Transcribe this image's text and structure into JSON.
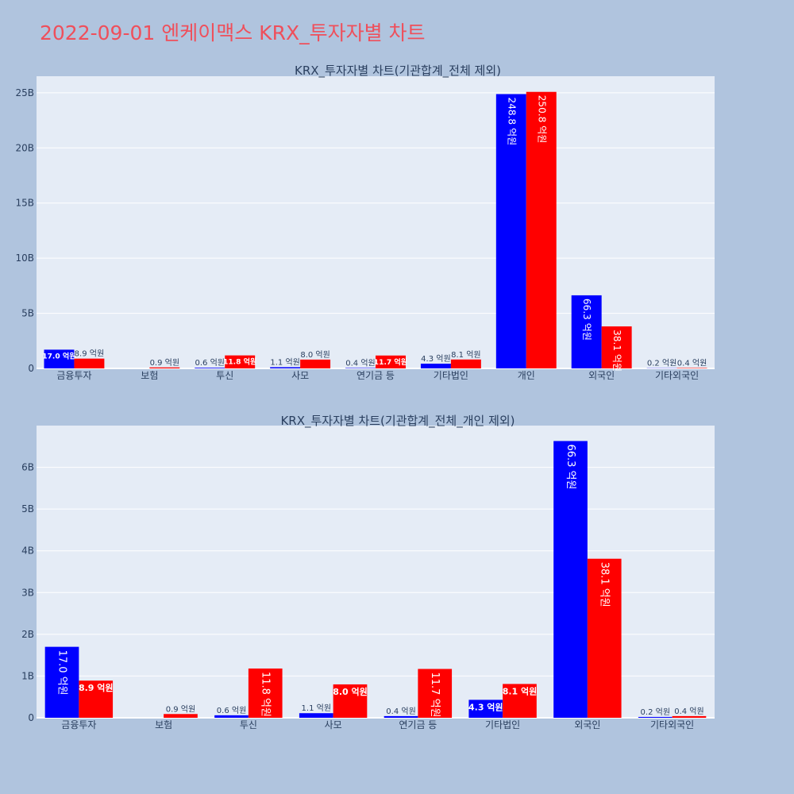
{
  "page": {
    "title": "2022-09-01 엔케이맥스 KRX_투자자별 차트",
    "colors": {
      "background": "#b0c4de",
      "plot_bg": "#e5ecf6",
      "title": "#ef4f5b",
      "series_a": "#0000ff",
      "series_b": "#ff0000"
    }
  },
  "chart_data": [
    {
      "type": "bar",
      "title": "KRX_투자자별 차트(기관합계_전체 제외)",
      "categories": [
        "금융투자",
        "보험",
        "투신",
        "사모",
        "연기금 등",
        "기타법인",
        "개인",
        "외국인",
        "기타외국인"
      ],
      "ylim": [
        0,
        26500000000
      ],
      "yticks": [
        {
          "value": 0,
          "label": "0"
        },
        {
          "value": 5000000000,
          "label": "5B"
        },
        {
          "value": 10000000000,
          "label": "10B"
        },
        {
          "value": 15000000000,
          "label": "15B"
        },
        {
          "value": 20000000000,
          "label": "20B"
        },
        {
          "value": 25000000000,
          "label": "25B"
        }
      ],
      "grid": true,
      "series": [
        {
          "color": "#0000ff",
          "values": [
            1700000000,
            0,
            60000000,
            110000000,
            40000000,
            430000000,
            24880000000,
            6630000000,
            20000000
          ],
          "labels": [
            "17.0 억원",
            "",
            "0.6 억원",
            "1.1 억원",
            "0.4 억원",
            "4.3 억원",
            "248.8 억원",
            "66.3 억원",
            "0.2 억원"
          ]
        },
        {
          "color": "#ff0000",
          "values": [
            890000000,
            90000000,
            1180000000,
            800000000,
            1170000000,
            810000000,
            25080000000,
            3810000000,
            40000000
          ],
          "labels": [
            "8.9 억원",
            "0.9 억원",
            "11.8 억원",
            "8.0 억원",
            "11.7 억원",
            "8.1 억원",
            "250.8 억원",
            "38.1 억원",
            "0.4 억원"
          ]
        }
      ]
    },
    {
      "type": "bar",
      "title": "KRX_투자자별 차트(기관합계_전체_개인 제외)",
      "categories": [
        "금융투자",
        "보험",
        "투신",
        "사모",
        "연기금 등",
        "기타법인",
        "외국인",
        "기타외국인"
      ],
      "ylim": [
        0,
        7000000000
      ],
      "yticks": [
        {
          "value": 0,
          "label": "0"
        },
        {
          "value": 1000000000,
          "label": "1B"
        },
        {
          "value": 2000000000,
          "label": "2B"
        },
        {
          "value": 3000000000,
          "label": "3B"
        },
        {
          "value": 4000000000,
          "label": "4B"
        },
        {
          "value": 5000000000,
          "label": "5B"
        },
        {
          "value": 6000000000,
          "label": "6B"
        }
      ],
      "grid": true,
      "series": [
        {
          "color": "#0000ff",
          "values": [
            1700000000,
            0,
            60000000,
            110000000,
            40000000,
            430000000,
            6630000000,
            20000000
          ],
          "labels": [
            "17.0 억원",
            "",
            "0.6 억원",
            "1.1 억원",
            "0.4 억원",
            "4.3 억원",
            "66.3 억원",
            "0.2 억원"
          ]
        },
        {
          "color": "#ff0000",
          "values": [
            890000000,
            90000000,
            1180000000,
            800000000,
            1170000000,
            810000000,
            3810000000,
            40000000
          ],
          "labels": [
            "8.9 억원",
            "0.9 억원",
            "11.8 억원",
            "8.0 억원",
            "11.7 억원",
            "8.1 억원",
            "38.1 억원",
            "0.4 억원"
          ]
        }
      ]
    }
  ]
}
